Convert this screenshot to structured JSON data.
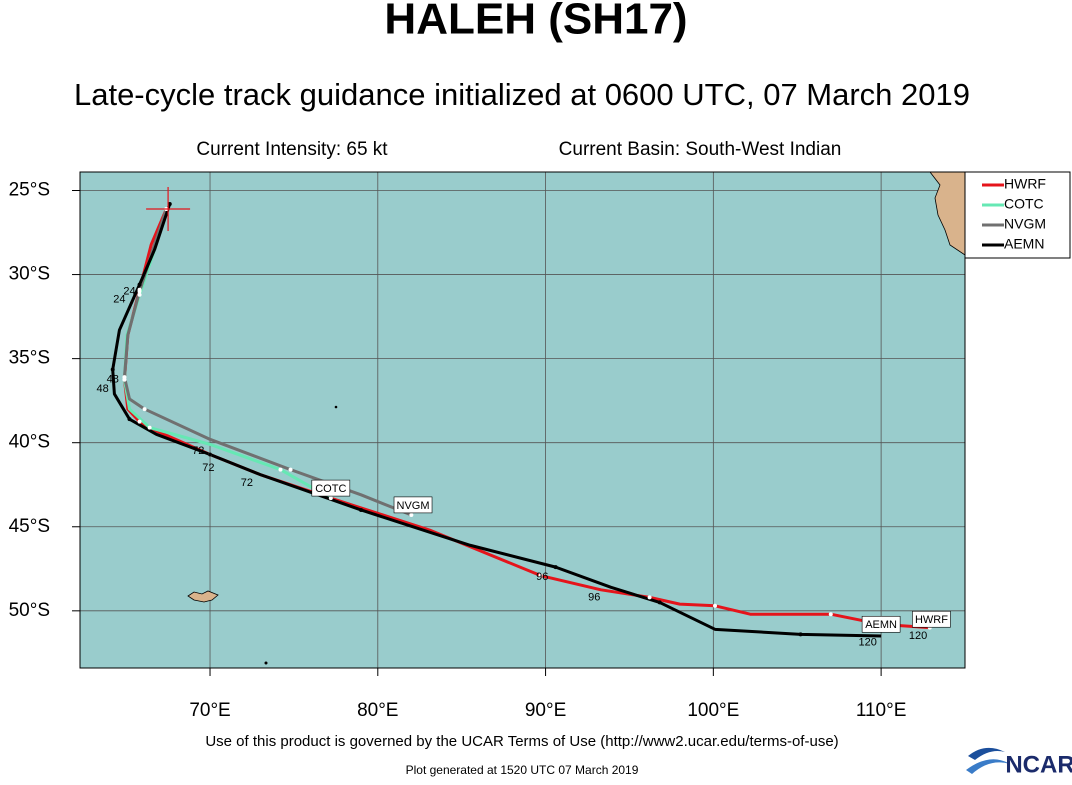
{
  "chart_data": {
    "type": "line",
    "title": "HALEH (SH17)",
    "subtitle": "Late-cycle track guidance initialized at 0600 UTC, 07 March 2019",
    "intensity": "Current Intensity: 65 kt",
    "basin": "Current Basin: South-West Indian",
    "xlim": [
      62.25,
      115.0
    ],
    "ylim": [
      -53.4,
      -23.9
    ],
    "xticks": [
      {
        "value": 70,
        "label": "70°E"
      },
      {
        "value": 80,
        "label": "80°E"
      },
      {
        "value": 90,
        "label": "90°E"
      },
      {
        "value": 100,
        "label": "100°E"
      },
      {
        "value": 110,
        "label": "110°E"
      }
    ],
    "yticks": [
      {
        "value": -25,
        "label": "25°S"
      },
      {
        "value": -30,
        "label": "30°S"
      },
      {
        "value": -35,
        "label": "35°S"
      },
      {
        "value": -40,
        "label": "40°S"
      },
      {
        "value": -45,
        "label": "45°S"
      },
      {
        "value": -50,
        "label": "50°S"
      }
    ],
    "grid": true,
    "legend": "outside-top-right",
    "current_position": {
      "x": 67.5,
      "y": -26.1
    },
    "series": [
      {
        "name": "HWRF",
        "color": "#e5141b",
        "x": [
          67.4,
          66.5,
          65.8,
          65.1,
          64.9,
          65.1,
          65.8,
          66.8,
          70.0,
          73.0,
          77.2,
          83.1,
          89.7,
          93.3,
          96.2,
          98.0,
          100.1,
          102.2,
          107.0,
          110.0,
          112.9
        ],
        "values": [
          -26.1,
          -28.2,
          -30.9,
          -33.6,
          -36.25,
          -38.0,
          -38.75,
          -39.3,
          -40.7,
          -41.9,
          -43.3,
          -45.2,
          -47.9,
          -48.75,
          -49.2,
          -49.6,
          -49.7,
          -50.2,
          -50.2,
          -50.8,
          -51.0
        ]
      },
      {
        "name": "COTC",
        "color": "#66e8b4",
        "x": [
          67.4,
          66.7,
          65.8,
          65.05,
          64.9,
          65.2,
          66.4,
          70.0,
          74.2,
          77.2
        ],
        "values": [
          -26.1,
          -28.5,
          -31.2,
          -33.6,
          -36.25,
          -38.0,
          -39.1,
          -40.1,
          -41.6,
          -43.3
        ]
      },
      {
        "name": "NVGM",
        "color": "#707070",
        "x": [
          67.4,
          66.7,
          65.8,
          65.1,
          64.9,
          65.2,
          66.1,
          70.0,
          74.8,
          79.0,
          82.0
        ],
        "values": [
          -26.1,
          -28.2,
          -31.0,
          -33.6,
          -36.1,
          -37.4,
          -38.0,
          -39.8,
          -41.6,
          -43.1,
          -44.3
        ]
      },
      {
        "name": "AEMN",
        "color": "#000000",
        "x": [
          67.6,
          66.7,
          65.8,
          64.6,
          64.2,
          64.3,
          65.2,
          66.8,
          70.0,
          73.0,
          79.0,
          85.5,
          90.6,
          93.9,
          96.8,
          100.1,
          105.2,
          110.0
        ],
        "values": [
          -25.8,
          -28.5,
          -30.6,
          -33.3,
          -35.65,
          -37.1,
          -38.6,
          -39.5,
          -40.7,
          -41.9,
          -44.0,
          -46.1,
          -47.4,
          -48.6,
          -49.5,
          -51.1,
          -51.4,
          -51.5
        ]
      }
    ],
    "track_labels": [
      {
        "text": "COTC",
        "x": 77.2,
        "y": -42.7
      },
      {
        "text": "NVGM",
        "x": 82.1,
        "y": -43.7
      },
      {
        "text": "AEMN",
        "x": 110.0,
        "y": -50.8
      },
      {
        "text": "HWRF",
        "x": 113.0,
        "y": -50.5
      }
    ],
    "hour_labels": [
      {
        "text": "24",
        "x": 64.6,
        "y": -31.5
      },
      {
        "text": "24",
        "x": 65.2,
        "y": -31.0
      },
      {
        "text": "48",
        "x": 63.6,
        "y": -36.8
      },
      {
        "text": "48",
        "x": 64.2,
        "y": -36.25
      },
      {
        "text": "72",
        "x": 69.3,
        "y": -40.5
      },
      {
        "text": "72",
        "x": 69.9,
        "y": -41.5
      },
      {
        "text": "72",
        "x": 72.2,
        "y": -42.4
      },
      {
        "text": "96",
        "x": 89.8,
        "y": -48.0
      },
      {
        "text": "96",
        "x": 92.9,
        "y": -49.2
      },
      {
        "text": "120",
        "x": 109.2,
        "y": -51.9
      },
      {
        "text": "120",
        "x": 112.2,
        "y": -51.5
      }
    ]
  },
  "footer": {
    "terms": "Use of this product is governed by the UCAR Terms of Use (http://www2.ucar.edu/terms-of-use)",
    "generated": "Plot generated at 1520 UTC   07 March 2019",
    "logo": "NCAR"
  }
}
